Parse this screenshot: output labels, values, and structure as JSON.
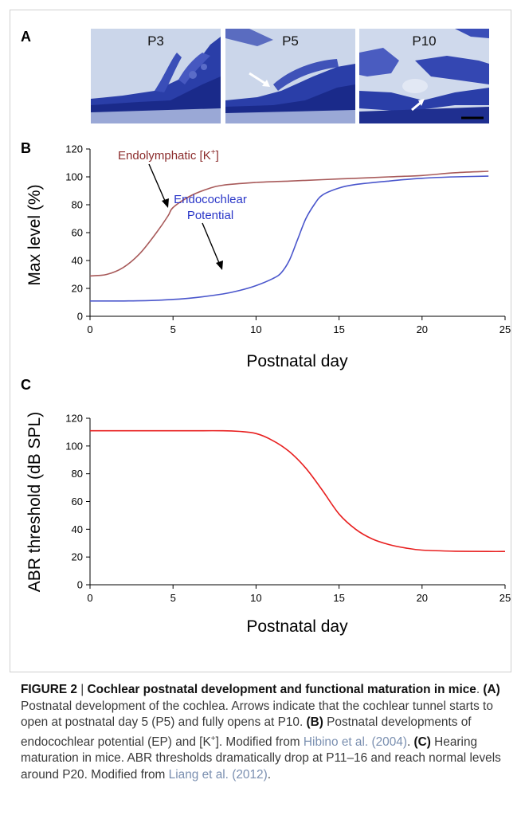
{
  "panels": {
    "a": {
      "letter": "A",
      "stages": [
        "P3",
        "P5",
        "P10"
      ]
    },
    "b": {
      "letter": "B"
    },
    "c": {
      "letter": "C"
    }
  },
  "chart_data": [
    {
      "type": "line",
      "title": "",
      "xlabel": "Postnatal day",
      "ylabel": "Max level (%)",
      "xlim": [
        0,
        25
      ],
      "ylim": [
        0,
        120
      ],
      "xticks": [
        0,
        5,
        10,
        15,
        20,
        25
      ],
      "yticks": [
        0,
        20,
        40,
        60,
        80,
        100,
        120
      ],
      "grid": false,
      "series": [
        {
          "name": "Endolymphatic [K+]",
          "color": "#a85a5a",
          "x": [
            0,
            1,
            2,
            3,
            4,
            4.7,
            5,
            6,
            7,
            8,
            10,
            12,
            14,
            16,
            18,
            20,
            22,
            24
          ],
          "y": [
            29,
            30,
            35,
            45,
            60,
            72,
            78,
            86,
            91,
            94,
            96,
            97,
            98,
            99,
            100,
            101,
            103,
            104
          ]
        },
        {
          "name": "Endocochlear Potential",
          "color": "#4a56cc",
          "x": [
            0,
            2,
            4,
            6,
            8,
            9,
            10,
            11,
            11.5,
            12,
            12.5,
            13,
            13.5,
            14,
            15,
            16,
            18,
            20,
            22,
            24
          ],
          "y": [
            11,
            11,
            11.5,
            13,
            16,
            18.5,
            22,
            27,
            31,
            40,
            55,
            70,
            80,
            87,
            92,
            94.5,
            97,
            99,
            100,
            100.5
          ]
        }
      ],
      "annotations": [
        {
          "text": "Endolymphatic [K",
          "sup": "+",
          "close": "]",
          "color": "#8b2b2b"
        },
        {
          "text": "Endocochlear",
          "color": "#2a36c8"
        },
        {
          "text": "Potential",
          "color": "#2a36c8"
        }
      ]
    },
    {
      "type": "line",
      "title": "",
      "xlabel": "Postnatal day",
      "ylabel": "ABR threshold (dB SPL)",
      "xlim": [
        0,
        25
      ],
      "ylim": [
        0,
        120
      ],
      "xticks": [
        0,
        5,
        10,
        15,
        20,
        25
      ],
      "yticks": [
        0,
        20,
        40,
        60,
        80,
        100,
        120
      ],
      "grid": false,
      "series": [
        {
          "color": "#e82020",
          "x": [
            0,
            2,
            4,
            6,
            8,
            9,
            10,
            11,
            12,
            13,
            14,
            15,
            16,
            17,
            18,
            19,
            20,
            22,
            24,
            25
          ],
          "y": [
            111,
            111,
            111,
            111,
            111,
            110.5,
            109,
            104,
            96,
            84,
            68,
            51,
            40,
            33,
            29,
            26.5,
            25,
            24.2,
            24,
            24
          ]
        }
      ]
    }
  ],
  "caption": {
    "fig": "FIGURE 2",
    "sep": " | ",
    "title": "Cochlear postnatal development and functional maturation in mice",
    "dot": ". ",
    "a_tag": "(A)",
    "a_text": " Postnatal development of the cochlea. Arrows indicate that the cochlear tunnel starts to open at postnatal day 5 (P5) and fully opens at P10. ",
    "b_tag": "(B)",
    "b_text1": " Postnatal developments of endocochlear potential (EP) and [K",
    "b_sup": "+",
    "b_text2": "]. Modified from ",
    "ref1": "Hibino et al. (2004)",
    "b_end": ". ",
    "c_tag": "(C)",
    "c_text1": " Hearing maturation in mice. ABR thresholds dramatically drop at P11–16 and reach normal levels around P20. Modified from ",
    "ref2": "Liang et al. (2012)",
    "c_end": "."
  }
}
